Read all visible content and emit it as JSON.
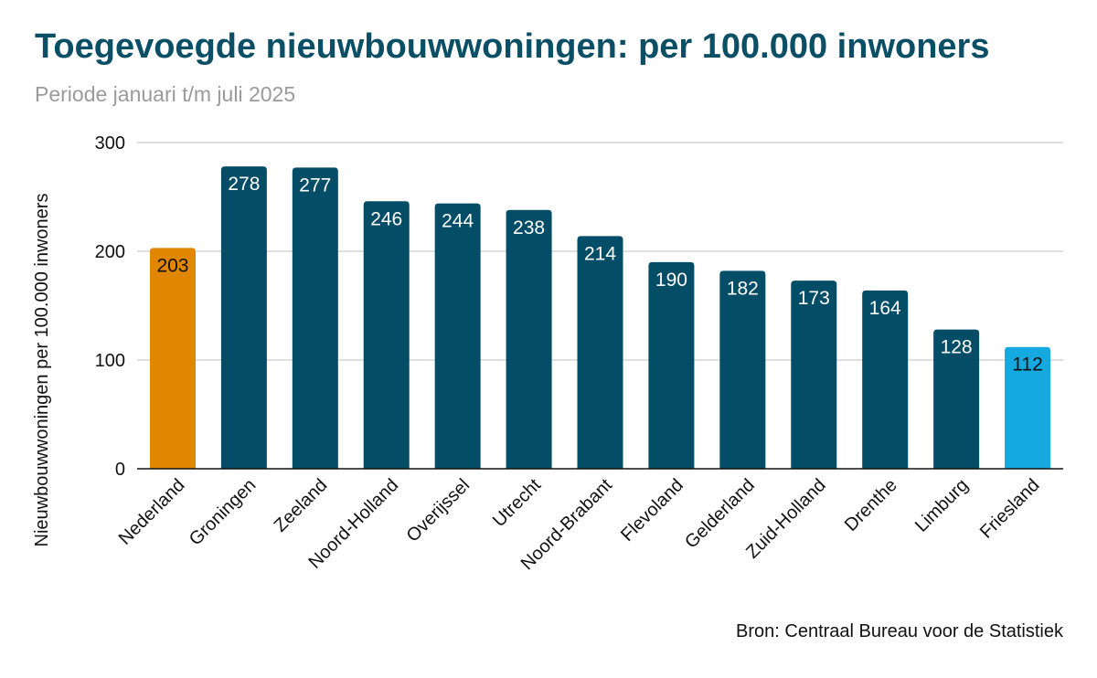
{
  "source": "Bron: Centraal Bureau voor de Statistiek",
  "colors": {
    "title": "#0a4f66",
    "subtitle": "#9a9a9a",
    "bar_default": "#044d67",
    "bar_nederland": "#e08600",
    "bar_friesland": "#16a9e0",
    "label_on_dark": "#ffffff",
    "label_on_light": "#111111",
    "grid": "#cccccc",
    "axis": "#111111"
  },
  "chart_data": {
    "type": "bar",
    "title": "Toegevoegde nieuwbouwwoningen: per 100.000 inwoners",
    "subtitle": "Periode januari t/m juli 2025",
    "xlabel": "",
    "ylabel": "Nieuwbouwwoningen per 100.000 inwoners",
    "categories": [
      "Nederland",
      "Groningen",
      "Zeeland",
      "Noord-Holland",
      "Overijssel",
      "Utrecht",
      "Noord-Brabant",
      "Flevoland",
      "Gelderland",
      "Zuid-Holland",
      "Drenthe",
      "Limburg",
      "Friesland"
    ],
    "values": [
      203,
      278,
      277,
      246,
      244,
      238,
      214,
      190,
      182,
      173,
      164,
      128,
      112
    ],
    "ylim": [
      0,
      300
    ],
    "yticks": [
      0,
      100,
      200,
      300
    ],
    "grid": true,
    "legend": "none",
    "data_labels": true,
    "highlight": {
      "Nederland": "bar_nederland",
      "Friesland": "bar_friesland"
    }
  }
}
